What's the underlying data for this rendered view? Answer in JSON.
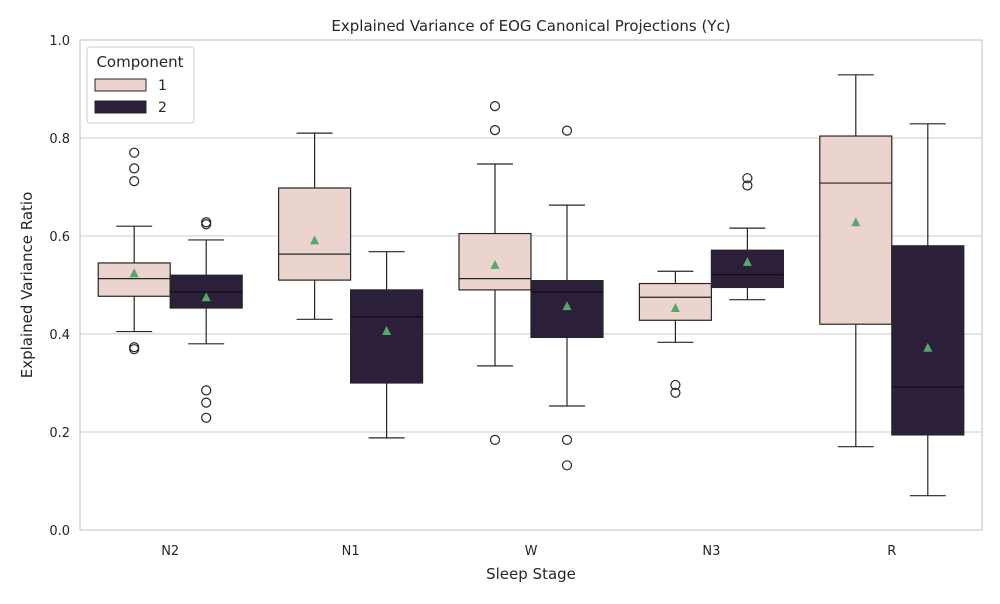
{
  "chart_data": {
    "type": "boxplot",
    "title": "Explained Variance of EOG Canonical Projections (Yc)",
    "xlabel": "Sleep Stage",
    "ylabel": "Explained Variance Ratio",
    "ylim": [
      0,
      1
    ],
    "yticks": [
      "0.0",
      "0.2",
      "0.4",
      "0.6",
      "0.8",
      "1.0"
    ],
    "grid": true,
    "categories": [
      "N2",
      "N1",
      "W",
      "N3",
      "R"
    ],
    "legend": {
      "title": "Component",
      "position": "top-left",
      "entries": [
        "1",
        "2"
      ]
    },
    "colors": {
      "series1": "#ebd3ce",
      "series2": "#2c1f3a",
      "mean_marker": "#55a868",
      "grid": "#cccccc"
    },
    "series": [
      {
        "name": "1",
        "boxes": [
          {
            "whislo": 0.405,
            "q1": 0.477,
            "med": 0.513,
            "q3": 0.545,
            "whishi": 0.62,
            "mean": 0.524,
            "fliers": [
              0.77,
              0.738,
              0.712,
              0.373,
              0.369
            ]
          },
          {
            "whislo": 0.43,
            "q1": 0.51,
            "med": 0.563,
            "q3": 0.698,
            "whishi": 0.81,
            "mean": 0.591,
            "fliers": []
          },
          {
            "whislo": 0.335,
            "q1": 0.49,
            "med": 0.513,
            "q3": 0.605,
            "whishi": 0.747,
            "mean": 0.541,
            "fliers": [
              0.865,
              0.816,
              0.184
            ]
          },
          {
            "whislo": 0.383,
            "q1": 0.428,
            "med": 0.475,
            "q3": 0.503,
            "whishi": 0.528,
            "mean": 0.453,
            "fliers": [
              0.296,
              0.28
            ]
          },
          {
            "whislo": 0.17,
            "q1": 0.42,
            "med": 0.708,
            "q3": 0.804,
            "whishi": 0.929,
            "mean": 0.628,
            "fliers": []
          }
        ]
      },
      {
        "name": "2",
        "boxes": [
          {
            "whislo": 0.38,
            "q1": 0.453,
            "med": 0.486,
            "q3": 0.52,
            "whishi": 0.592,
            "mean": 0.475,
            "fliers": [
              0.628,
              0.624,
              0.285,
              0.26,
              0.229
            ]
          },
          {
            "whislo": 0.188,
            "q1": 0.3,
            "med": 0.435,
            "q3": 0.49,
            "whishi": 0.568,
            "mean": 0.406,
            "fliers": []
          },
          {
            "whislo": 0.253,
            "q1": 0.393,
            "med": 0.486,
            "q3": 0.509,
            "whishi": 0.663,
            "mean": 0.457,
            "fliers": [
              0.815,
              0.184,
              0.132
            ]
          },
          {
            "whislo": 0.47,
            "q1": 0.495,
            "med": 0.521,
            "q3": 0.571,
            "whishi": 0.616,
            "mean": 0.547,
            "fliers": [
              0.718,
              0.703
            ]
          },
          {
            "whislo": 0.07,
            "q1": 0.194,
            "med": 0.292,
            "q3": 0.58,
            "whishi": 0.829,
            "mean": 0.372,
            "fliers": []
          }
        ]
      }
    ]
  }
}
